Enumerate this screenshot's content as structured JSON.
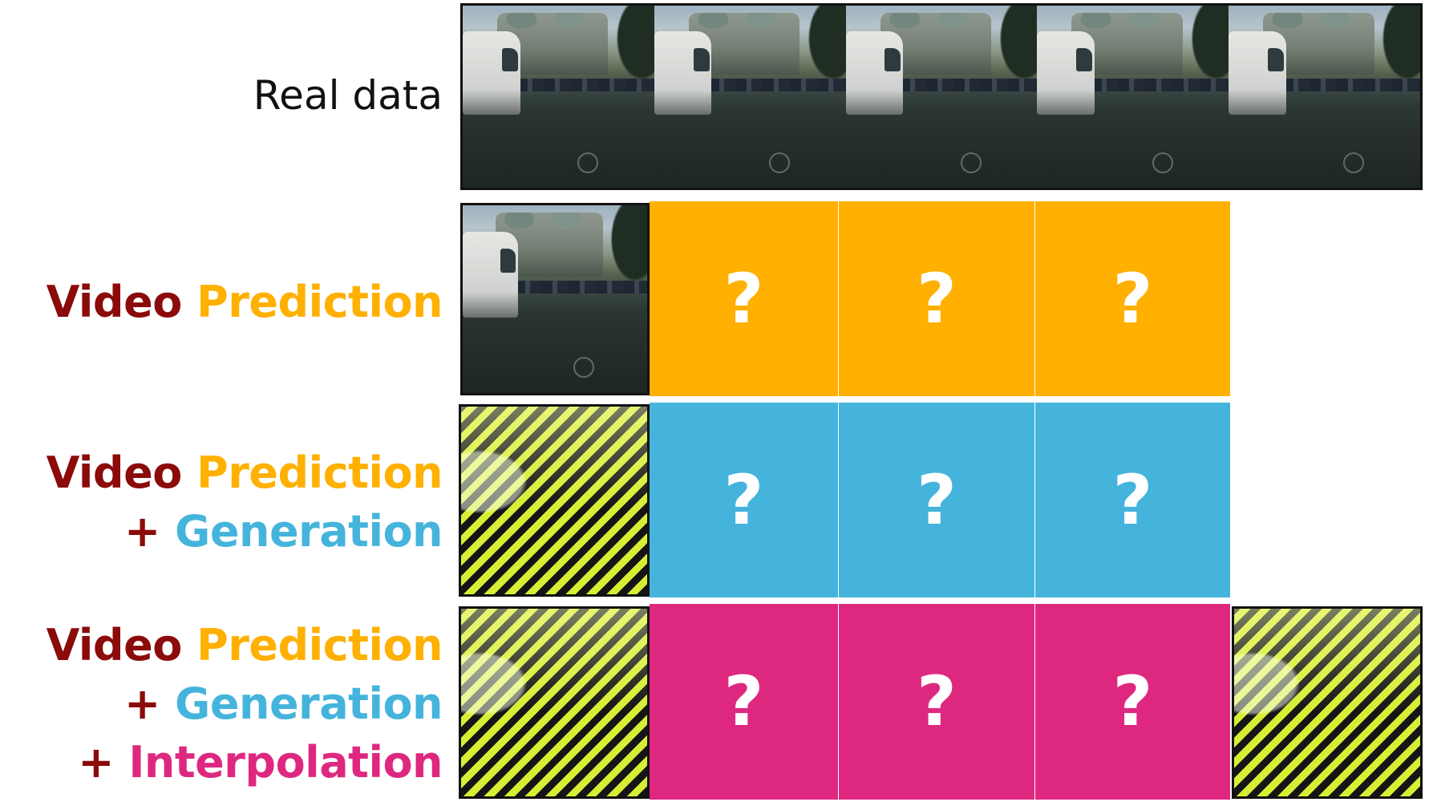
{
  "labels": {
    "real_data": "Real data",
    "video": "Video",
    "prediction": "Prediction",
    "plus": "+",
    "generation": "Generation",
    "interpolation": "Interpolation"
  },
  "colors": {
    "video": "#8b0a0a",
    "prediction": "#ffb000",
    "generation": "#45b4dc",
    "interpolation": "#de2880",
    "hatch_light": "#d7ee35",
    "hatch_dark": "#151515"
  },
  "placeholder": "?",
  "rows": [
    {
      "name": "real-data",
      "frames": 5
    },
    {
      "name": "video-prediction",
      "known_first_frame": "photo",
      "unknown_frames": 3,
      "color": "#ffb000"
    },
    {
      "name": "video-prediction-generation",
      "known_first_frame": "hatched",
      "unknown_frames": 3,
      "color": "#45b4dc"
    },
    {
      "name": "video-prediction-generation-interpolation",
      "known_first_frame": "hatched",
      "unknown_frames": 3,
      "known_last_frame": "hatched",
      "color": "#de2880"
    }
  ]
}
